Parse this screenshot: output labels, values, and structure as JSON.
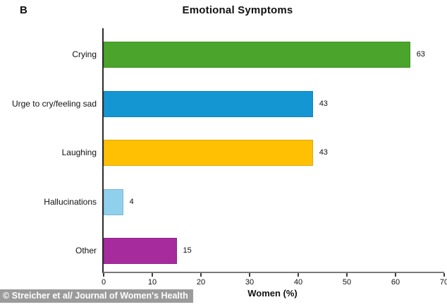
{
  "figure": {
    "panel_label": "B",
    "watermark": "© Streicher et al/ Journal of Women's Health"
  },
  "chart_data": {
    "type": "bar",
    "orientation": "horizontal",
    "title": "Emotional Symptoms",
    "categories": [
      "Crying",
      "Urge to cry/feeling sad",
      "Laughing",
      "Hallucinations",
      "Other"
    ],
    "values": [
      63,
      43,
      43,
      4,
      15
    ],
    "bar_colors": [
      "#4BA52C",
      "#1496D2",
      "#FFC004",
      "#8FD0EC",
      "#A62C9E"
    ],
    "xlabel": "Women (%)",
    "ylabel": "",
    "xlim": [
      0,
      70
    ],
    "xticks": [
      0,
      10,
      20,
      30,
      40,
      50,
      60,
      70
    ],
    "grid": false,
    "legend": "none",
    "background_color": "#ffffff",
    "axis_color": "#2b2b2b"
  }
}
